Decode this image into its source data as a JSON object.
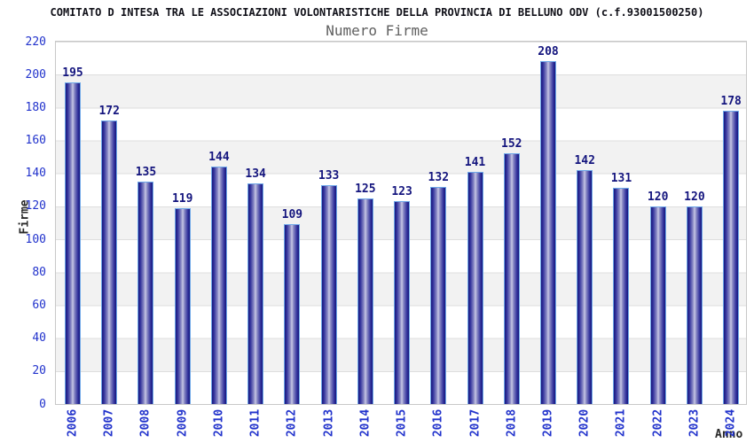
{
  "chart_data": {
    "type": "bar",
    "title": "COMITATO D INTESA TRA LE ASSOCIAZIONI VOLONTARISTICHE DELLA PROVINCIA DI BELLUNO ODV (c.f.93001500250)",
    "subtitle": "Numero Firme",
    "categories": [
      "2006",
      "2007",
      "2008",
      "2009",
      "2010",
      "2011",
      "2012",
      "2013",
      "2014",
      "2015",
      "2016",
      "2017",
      "2018",
      "2019",
      "2020",
      "2021",
      "2022",
      "2023",
      "2024"
    ],
    "values": [
      195,
      172,
      135,
      119,
      144,
      134,
      109,
      133,
      125,
      123,
      132,
      141,
      152,
      208,
      142,
      131,
      120,
      120,
      178
    ],
    "xlabel": "Anno",
    "ylabel": "Firme",
    "ylim": [
      0,
      220
    ],
    "yticks": [
      0,
      20,
      40,
      60,
      80,
      100,
      120,
      140,
      160,
      180,
      200,
      220
    ],
    "grid": "horizontal-bands-alternating",
    "legend": "none",
    "value_labels_shown": true
  },
  "colors": {
    "title": "#101018",
    "subtitle": "#606060",
    "tick_label": "#2233cc",
    "value_label": "#14157e",
    "axis_title": "#2a2a2a",
    "bar_dark": "#17177c",
    "bar_light": "#c9c9e6",
    "bar_outline": "#6ea7e8",
    "band_gray": "#f2f2f2",
    "grid_line": "#dedede",
    "plot_border": "#c8c8c8",
    "background": "#ffffff"
  }
}
